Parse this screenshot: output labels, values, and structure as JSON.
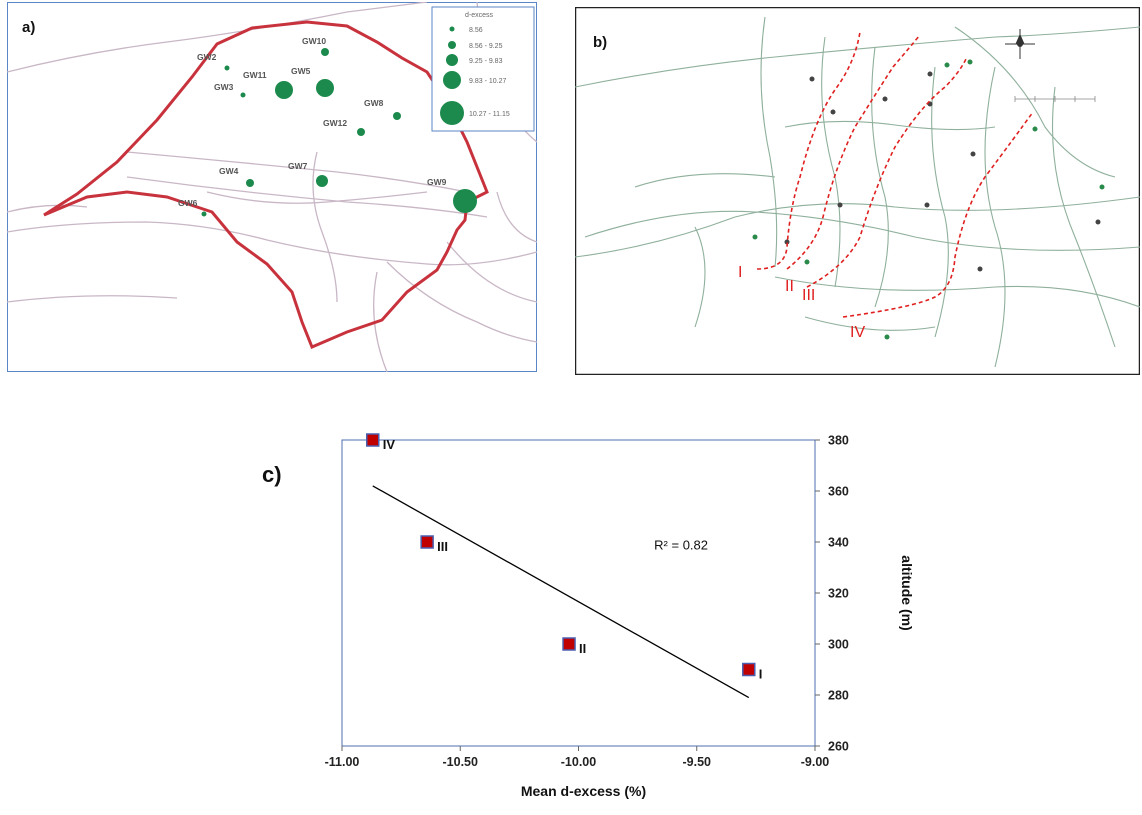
{
  "panel_a": {
    "label": "a)",
    "legend": {
      "title": "d-excess",
      "classes": [
        "8.56",
        "8.56 - 9.25",
        "9.25 - 9.83",
        "9.83 - 10.27",
        "10.27 - 11.15"
      ]
    },
    "wells": [
      {
        "id": "GW2",
        "cls": 0
      },
      {
        "id": "GW3",
        "cls": 0
      },
      {
        "id": "GW11",
        "cls": 3
      },
      {
        "id": "GW5",
        "cls": 3
      },
      {
        "id": "GW10",
        "cls": 1
      },
      {
        "id": "GW8",
        "cls": 1
      },
      {
        "id": "GW12",
        "cls": 1
      },
      {
        "id": "GW4",
        "cls": 1
      },
      {
        "id": "GW7",
        "cls": 2
      },
      {
        "id": "GW9",
        "cls": 4
      },
      {
        "id": "GW6",
        "cls": 0
      }
    ],
    "colors": {
      "boundary": "#c8323c",
      "well": "#1b8a4c",
      "road": "#c9b7c6"
    }
  },
  "panel_b": {
    "label": "b)",
    "zones": [
      "I",
      "II",
      "III",
      "IV"
    ],
    "colors": {
      "line": "#e02020",
      "road": "#8fb09c"
    }
  },
  "chart_data": {
    "type": "scatter",
    "panel_label": "c)",
    "xlabel": "Mean d-excess (%)",
    "ylabel": "altitude (m)",
    "xlim": [
      -11.0,
      -9.0
    ],
    "ylim": [
      260,
      380
    ],
    "xticks": [
      "-11.00",
      "-10.50",
      "-10.00",
      "-9.50",
      "-9.00"
    ],
    "yticks": [
      "260",
      "280",
      "300",
      "320",
      "340",
      "360",
      "380"
    ],
    "y_axis_side": "right",
    "points": [
      {
        "label": "IV",
        "x": -10.87,
        "y": 380
      },
      {
        "label": "III",
        "x": -10.64,
        "y": 340
      },
      {
        "label": "II",
        "x": -10.04,
        "y": 300
      },
      {
        "label": "I",
        "x": -9.28,
        "y": 290
      }
    ],
    "trendline": {
      "x": [
        -10.87,
        -9.28
      ],
      "y": [
        362,
        279
      ]
    },
    "r2_label": "R² = 0.82",
    "marker_color": "#c00000",
    "marker_edge": "#4a5fb0"
  }
}
